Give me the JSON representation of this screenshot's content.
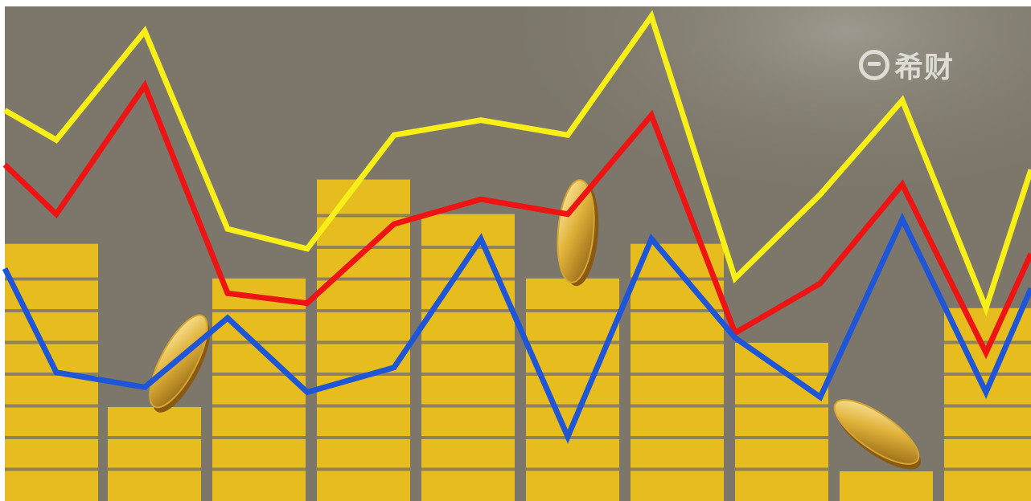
{
  "watermark": {
    "text": "希财",
    "color": "#e9e8e2"
  },
  "palette": {
    "background": "#7c776a",
    "bar_gold": "#e7bc1f",
    "bar_gap": "#7c776a",
    "line_yellow": "#f7ef17",
    "line_red": "#ee1414",
    "line_blue": "#1f56d8",
    "coin_gold": "#d4a531"
  },
  "lines": [
    {
      "name_color": "yellow",
      "values": [
        0.79,
        0.73,
        0.95,
        0.55,
        0.51,
        0.74,
        0.77,
        0.74,
        0.98,
        0.45,
        0.62,
        0.81,
        0.39,
        0.67
      ]
    },
    {
      "name_color": "red",
      "values": [
        0.68,
        0.58,
        0.84,
        0.42,
        0.4,
        0.56,
        0.61,
        0.58,
        0.78,
        0.34,
        0.44,
        0.64,
        0.3,
        0.5
      ]
    },
    {
      "name_color": "blue",
      "values": [
        0.47,
        0.26,
        0.23,
        0.37,
        0.22,
        0.27,
        0.53,
        0.13,
        0.53,
        0.33,
        0.21,
        0.57,
        0.22,
        0.43
      ]
    }
  ],
  "bar_levels": [
    0.52,
    0.19,
    0.45,
    0.65,
    0.58,
    0.45,
    0.52,
    0.32,
    0.06,
    0.39
  ]
}
